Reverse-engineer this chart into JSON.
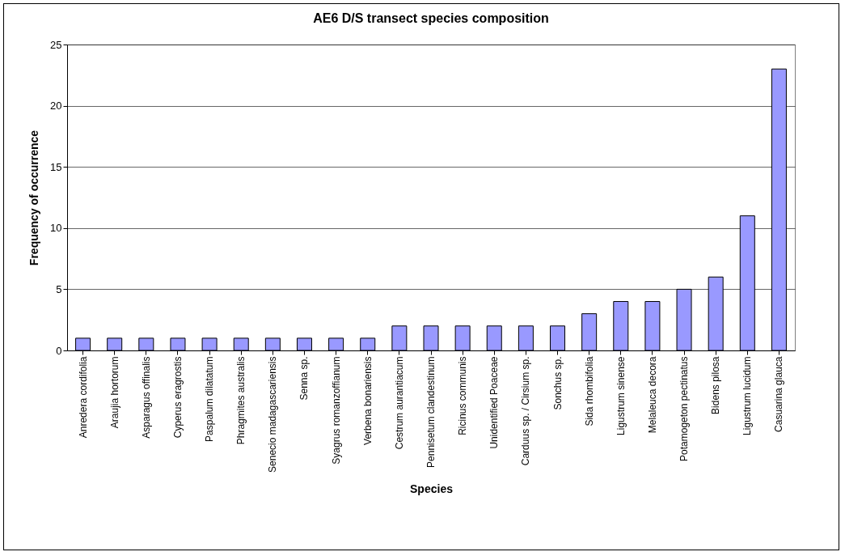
{
  "chart_data": {
    "type": "bar",
    "title": "AE6 D/S transect species composition",
    "xlabel": "Species",
    "ylabel": "Frequency of occurrence",
    "categories": [
      "Anredera cordifolia",
      "Araujia hortorum",
      "Asparagus offinalis",
      "Cyperus eragrostis",
      "Paspalum dilatatum",
      "Phragmites australis",
      "Senecio madagascariensis",
      "Senna sp.",
      "Syagrus romanzoffianum",
      "Verbena bonariensis",
      "Cestrum aurantiacum",
      "Pennisetum clandestinum",
      "Ricinus communis",
      "Unidentified Poaceae",
      "Carduus sp. / Cirsium sp.",
      "Sonchus sp.",
      "Sida rhombifolia",
      "Ligustrum sinense",
      "Melaleuca decora",
      "Potamogeton pectinatus",
      "Bidens pilosa",
      "Ligustrum lucidum",
      "Casuarina glauca"
    ],
    "values": [
      1,
      1,
      1,
      1,
      1,
      1,
      1,
      1,
      1,
      1,
      2,
      2,
      2,
      2,
      2,
      2,
      3,
      4,
      4,
      5,
      6,
      11,
      23
    ],
    "color": "#9999ff",
    "ylim": [
      0,
      25
    ],
    "yticks": [
      0,
      5,
      10,
      15,
      20,
      25
    ],
    "grid": "y"
  }
}
